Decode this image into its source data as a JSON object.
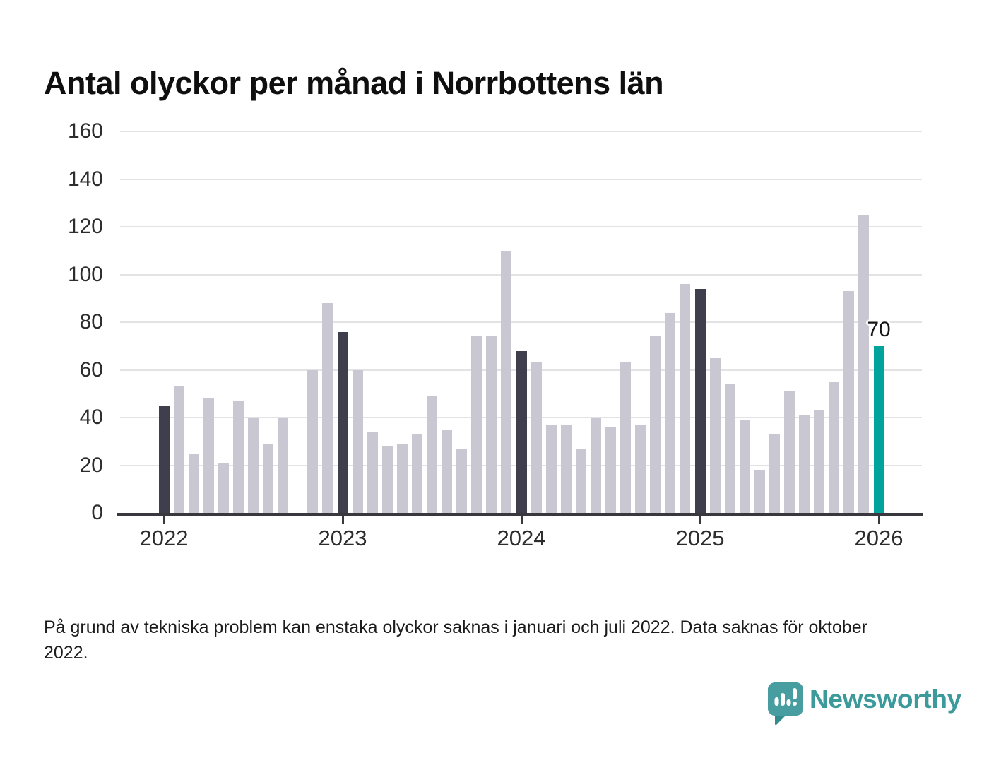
{
  "title": "Antal olyckor per månad i Norrbottens län",
  "footnote": "På grund av tekniska problem kan enstaka olyckor saknas i januari och juli 2022. Data saknas för oktober 2022.",
  "logo": {
    "text": "Newsworthy"
  },
  "colors": {
    "bar_default": "#c9c8d2",
    "bar_january": "#3f3e4c",
    "bar_highlight": "#00a49c",
    "axis": "#39383f",
    "gridline": "#e3e3e5",
    "tick_label": "#2d2d2d",
    "logo_teal": "#3c9a9b"
  },
  "chart_data": {
    "type": "bar",
    "title": "Antal olyckor per månad i Norrbottens län",
    "xlabel": "",
    "ylabel": "",
    "ylim": [
      0,
      160
    ],
    "y_ticks": [
      0,
      20,
      40,
      60,
      80,
      100,
      120,
      140,
      160
    ],
    "x_tick_labels": [
      "2022",
      "2023",
      "2024",
      "2025",
      "2026"
    ],
    "grid": "horizontal",
    "legend": "none",
    "categories": [
      "2022-01",
      "2022-02",
      "2022-03",
      "2022-04",
      "2022-05",
      "2022-06",
      "2022-07",
      "2022-08",
      "2022-09",
      "2022-10",
      "2022-11",
      "2022-12",
      "2023-01",
      "2023-02",
      "2023-03",
      "2023-04",
      "2023-05",
      "2023-06",
      "2023-07",
      "2023-08",
      "2023-09",
      "2023-10",
      "2023-11",
      "2023-12",
      "2024-01",
      "2024-02",
      "2024-03",
      "2024-04",
      "2024-05",
      "2024-06",
      "2024-07",
      "2024-08",
      "2024-09",
      "2024-10",
      "2024-11",
      "2024-12",
      "2025-01",
      "2025-02",
      "2025-03",
      "2025-04",
      "2025-05",
      "2025-06",
      "2025-07",
      "2025-08",
      "2025-09",
      "2025-10",
      "2025-11",
      "2025-12",
      "2026-01"
    ],
    "values": [
      45,
      53,
      25,
      48,
      21,
      47,
      40,
      29,
      40,
      null,
      60,
      88,
      76,
      60,
      34,
      28,
      29,
      33,
      49,
      35,
      27,
      74,
      74,
      110,
      68,
      63,
      37,
      37,
      27,
      40,
      36,
      63,
      37,
      74,
      84,
      96,
      94,
      65,
      54,
      39,
      18,
      33,
      51,
      41,
      43,
      55,
      93,
      125,
      70
    ],
    "missing_months": [
      "2022-10"
    ],
    "dark_indices": [
      0,
      12,
      24,
      36
    ],
    "highlight_index": 48,
    "highlight_value_label": "70"
  }
}
